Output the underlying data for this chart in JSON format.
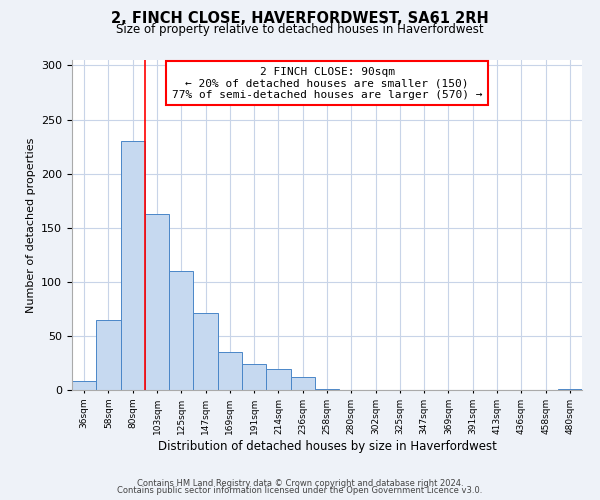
{
  "title": "2, FINCH CLOSE, HAVERFORDWEST, SA61 2RH",
  "subtitle": "Size of property relative to detached houses in Haverfordwest",
  "xlabel": "Distribution of detached houses by size in Haverfordwest",
  "ylabel": "Number of detached properties",
  "bin_labels": [
    "36sqm",
    "58sqm",
    "80sqm",
    "103sqm",
    "125sqm",
    "147sqm",
    "169sqm",
    "191sqm",
    "214sqm",
    "236sqm",
    "258sqm",
    "280sqm",
    "302sqm",
    "325sqm",
    "347sqm",
    "369sqm",
    "391sqm",
    "413sqm",
    "436sqm",
    "458sqm",
    "480sqm"
  ],
  "bar_heights": [
    8,
    65,
    230,
    163,
    110,
    71,
    35,
    24,
    19,
    12,
    1,
    0,
    0,
    0,
    0,
    0,
    0,
    0,
    0,
    0,
    1
  ],
  "bar_color": "#c6d9f0",
  "bar_edge_color": "#4a86c8",
  "property_line_color": "red",
  "annotation_text": "2 FINCH CLOSE: 90sqm\n← 20% of detached houses are smaller (150)\n77% of semi-detached houses are larger (570) →",
  "annotation_box_color": "white",
  "annotation_box_edge_color": "red",
  "ylim": [
    0,
    305
  ],
  "yticks": [
    0,
    50,
    100,
    150,
    200,
    250,
    300
  ],
  "footer_line1": "Contains HM Land Registry data © Crown copyright and database right 2024.",
  "footer_line2": "Contains public sector information licensed under the Open Government Licence v3.0.",
  "bg_color": "#eef2f8",
  "plot_bg_color": "#ffffff",
  "grid_color": "#c8d4e8"
}
